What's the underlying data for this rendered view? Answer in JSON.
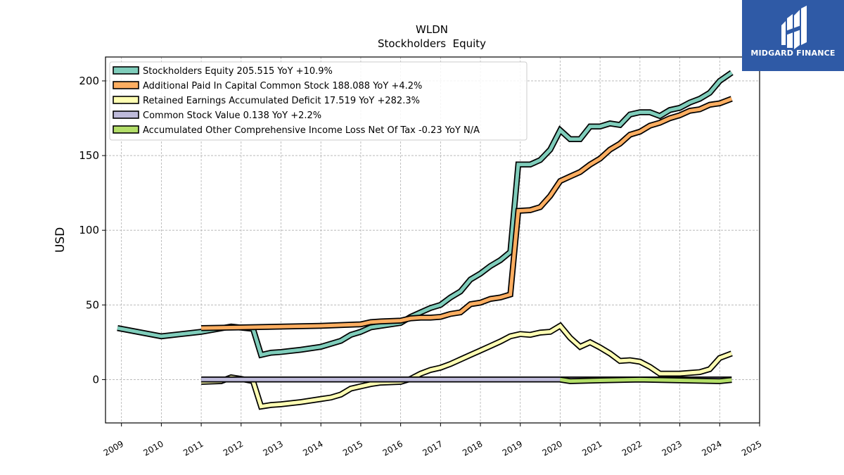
{
  "chart_data": {
    "type": "line",
    "title": "WLDN",
    "subtitle": "Stockholders  Equity",
    "ylabel": "USD",
    "xlabel": "",
    "xlim": [
      2008.6,
      2025.0
    ],
    "ylim": [
      -29,
      216
    ],
    "grid": true,
    "legend_position": "top-left",
    "x_ticks": [
      "2009",
      "2010",
      "2011",
      "2012",
      "2013",
      "2014",
      "2015",
      "2016",
      "2017",
      "2018",
      "2019",
      "2020",
      "2021",
      "2022",
      "2023",
      "2024",
      "2025"
    ],
    "y_ticks": [
      "0",
      "50",
      "100",
      "150",
      "200"
    ],
    "series": [
      {
        "name": "Stockholders Equity",
        "legend": "Stockholders Equity  205.515 YoY +10.9%",
        "color": "#7fcdbb",
        "points": [
          [
            2008.9,
            34.5
          ],
          [
            2010.0,
            29
          ],
          [
            2011.0,
            32
          ],
          [
            2011.75,
            35.5
          ],
          [
            2012.3,
            34
          ],
          [
            2012.5,
            16.5
          ],
          [
            2012.75,
            18
          ],
          [
            2013.0,
            18.5
          ],
          [
            2013.5,
            20
          ],
          [
            2014.0,
            22
          ],
          [
            2014.5,
            26
          ],
          [
            2014.75,
            30
          ],
          [
            2015.0,
            32
          ],
          [
            2015.25,
            35
          ],
          [
            2015.5,
            36
          ],
          [
            2016.0,
            38
          ],
          [
            2016.25,
            42
          ],
          [
            2016.5,
            45
          ],
          [
            2016.75,
            48
          ],
          [
            2017.0,
            50
          ],
          [
            2017.25,
            55
          ],
          [
            2017.5,
            59
          ],
          [
            2017.75,
            67
          ],
          [
            2018.0,
            71
          ],
          [
            2018.25,
            76
          ],
          [
            2018.5,
            80
          ],
          [
            2018.75,
            85.5
          ],
          [
            2018.95,
            144
          ],
          [
            2019.25,
            144
          ],
          [
            2019.5,
            147
          ],
          [
            2019.75,
            154
          ],
          [
            2020.0,
            167
          ],
          [
            2020.25,
            161
          ],
          [
            2020.5,
            161
          ],
          [
            2020.75,
            169.5
          ],
          [
            2021.0,
            169.5
          ],
          [
            2021.25,
            171.5
          ],
          [
            2021.5,
            170.5
          ],
          [
            2021.75,
            177.5
          ],
          [
            2022.0,
            179
          ],
          [
            2022.25,
            179
          ],
          [
            2022.5,
            176.5
          ],
          [
            2022.75,
            180.5
          ],
          [
            2023.0,
            182
          ],
          [
            2023.25,
            185.5
          ],
          [
            2023.5,
            188
          ],
          [
            2023.75,
            192
          ],
          [
            2024.0,
            200
          ],
          [
            2024.3,
            205.5
          ]
        ]
      },
      {
        "name": "Additional Paid In Capital Common Stock",
        "legend": "Additional Paid In Capital Common Stock  188.088 YoY +4.2%",
        "color": "#fdae61",
        "points": [
          [
            2011.0,
            34.5
          ],
          [
            2012.0,
            35
          ],
          [
            2013.0,
            35.5
          ],
          [
            2014.0,
            36
          ],
          [
            2015.0,
            37
          ],
          [
            2015.25,
            38.5
          ],
          [
            2015.5,
            39
          ],
          [
            2016.0,
            39.5
          ],
          [
            2016.25,
            41
          ],
          [
            2016.5,
            41.5
          ],
          [
            2016.75,
            41.5
          ],
          [
            2017.0,
            42
          ],
          [
            2017.25,
            44
          ],
          [
            2017.5,
            45
          ],
          [
            2017.75,
            50.5
          ],
          [
            2018.0,
            51.5
          ],
          [
            2018.25,
            54
          ],
          [
            2018.5,
            55
          ],
          [
            2018.75,
            57
          ],
          [
            2018.95,
            113
          ],
          [
            2019.25,
            113.5
          ],
          [
            2019.5,
            115.5
          ],
          [
            2019.75,
            123
          ],
          [
            2020.0,
            133
          ],
          [
            2020.25,
            136
          ],
          [
            2020.5,
            139
          ],
          [
            2020.75,
            144
          ],
          [
            2021.0,
            148
          ],
          [
            2021.25,
            154
          ],
          [
            2021.5,
            158
          ],
          [
            2021.75,
            164
          ],
          [
            2022.0,
            166
          ],
          [
            2022.25,
            170
          ],
          [
            2022.5,
            172
          ],
          [
            2022.75,
            175
          ],
          [
            2023.0,
            177
          ],
          [
            2023.25,
            180
          ],
          [
            2023.5,
            181
          ],
          [
            2023.75,
            184
          ],
          [
            2024.0,
            185
          ],
          [
            2024.3,
            188
          ]
        ]
      },
      {
        "name": "Retained Earnings Accumulated Deficit",
        "legend": "Retained Earnings Accumulated Deficit  17.519 YoY +282.3%",
        "color": "#ffffb3",
        "points": [
          [
            2011.0,
            -1.5
          ],
          [
            2011.5,
            -1
          ],
          [
            2011.75,
            1.5
          ],
          [
            2012.0,
            0.5
          ],
          [
            2012.3,
            -1
          ],
          [
            2012.5,
            -18
          ],
          [
            2012.75,
            -17
          ],
          [
            2013.0,
            -16.5
          ],
          [
            2013.5,
            -15
          ],
          [
            2014.0,
            -13
          ],
          [
            2014.25,
            -12
          ],
          [
            2014.5,
            -10
          ],
          [
            2014.75,
            -6
          ],
          [
            2015.0,
            -4.5
          ],
          [
            2015.25,
            -3
          ],
          [
            2015.5,
            -2
          ],
          [
            2016.0,
            -1.5
          ],
          [
            2016.25,
            0.5
          ],
          [
            2016.5,
            4
          ],
          [
            2016.75,
            6.5
          ],
          [
            2017.0,
            8
          ],
          [
            2017.25,
            10.5
          ],
          [
            2017.5,
            13.5
          ],
          [
            2017.75,
            16.5
          ],
          [
            2018.0,
            19.5
          ],
          [
            2018.25,
            22.5
          ],
          [
            2018.5,
            25.5
          ],
          [
            2018.75,
            29
          ],
          [
            2019.0,
            30.5
          ],
          [
            2019.25,
            30
          ],
          [
            2019.5,
            31.5
          ],
          [
            2019.75,
            32
          ],
          [
            2020.0,
            36
          ],
          [
            2020.25,
            28
          ],
          [
            2020.5,
            22
          ],
          [
            2020.75,
            25
          ],
          [
            2021.0,
            21.5
          ],
          [
            2021.25,
            17.5
          ],
          [
            2021.5,
            12.5
          ],
          [
            2021.75,
            13
          ],
          [
            2022.0,
            12
          ],
          [
            2022.25,
            8.5
          ],
          [
            2022.5,
            4
          ],
          [
            2022.75,
            4
          ],
          [
            2023.0,
            4
          ],
          [
            2023.25,
            4.5
          ],
          [
            2023.5,
            5
          ],
          [
            2023.75,
            7
          ],
          [
            2024.0,
            14.5
          ],
          [
            2024.3,
            17.5
          ]
        ]
      },
      {
        "name": "Common Stock Value",
        "legend": "Common Stock Value  0.138 YoY +2.2%",
        "color": "#bebada",
        "points": [
          [
            2011.0,
            0.14
          ],
          [
            2024.3,
            0.138
          ]
        ]
      },
      {
        "name": "Accumulated Other Comprehensive Income Loss Net Of Tax",
        "legend": "Accumulated Other Comprehensive Income Loss Net Of Tax  -0.23 YoY N/A",
        "color": "#b3de69",
        "points": [
          [
            2020.0,
            0
          ],
          [
            2020.25,
            -1
          ],
          [
            2021.0,
            -0.5
          ],
          [
            2022.0,
            0
          ],
          [
            2023.0,
            -0.5
          ],
          [
            2024.0,
            -1
          ],
          [
            2024.3,
            -0.23
          ]
        ]
      }
    ]
  },
  "logo": {
    "text": "MIDGARD FINANCE",
    "background": "#2f5aa6"
  }
}
